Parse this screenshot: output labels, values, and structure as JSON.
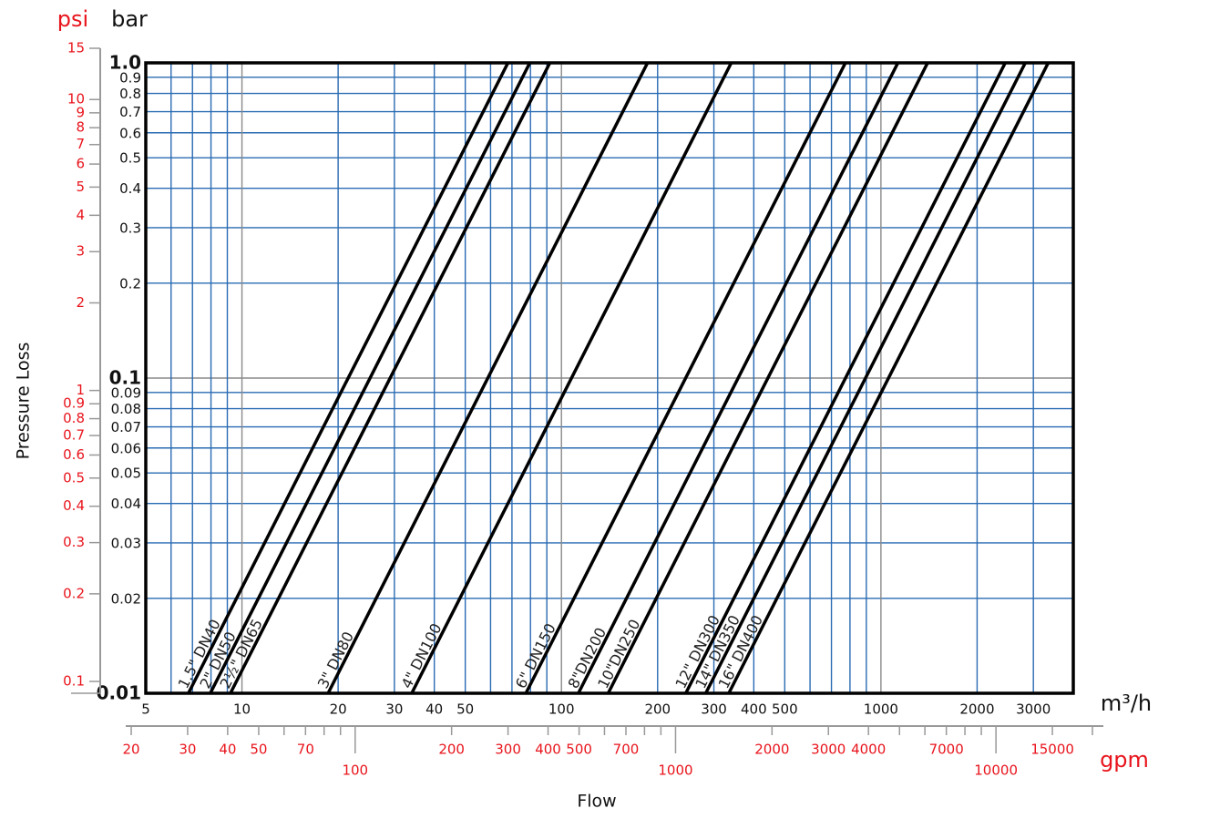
{
  "chart_data": {
    "type": "line",
    "x_label": "Flow",
    "y_label": "Pressure Loss",
    "x_unit": "m³/h",
    "x2_unit": "gpm",
    "y_unit": "bar",
    "y2_unit": "psi",
    "log_x": true,
    "log_y": true,
    "grid": true,
    "grid_color": "#2a6bb3",
    "major_grid_color": "#8a8a8a",
    "axis_color": "#e8141c",
    "xlim": [
      5,
      4000
    ],
    "xticks": [
      5,
      10,
      20,
      30,
      40,
      50,
      100,
      200,
      300,
      400,
      500,
      1000,
      2000,
      3000
    ],
    "xminor": [
      6,
      7,
      8,
      9,
      60,
      70,
      80,
      90,
      600,
      700,
      800,
      900
    ],
    "ylim": [
      0.01,
      1
    ],
    "yticks": [
      {
        "value": 1,
        "label": "1.0"
      },
      0.9,
      0.8,
      0.7,
      0.6,
      0.5,
      0.4,
      0.3,
      0.2,
      0.1,
      0.09,
      0.08,
      0.07,
      0.06,
      0.05,
      0.04,
      0.03,
      0.02,
      0.01
    ],
    "x2lim": [
      20,
      20000
    ],
    "x2ticks": [
      20,
      30,
      40,
      50,
      70,
      100,
      200,
      300,
      400,
      500,
      700,
      1000,
      2000,
      3000,
      4000,
      7000,
      10000,
      15000
    ],
    "x2minor": [
      60,
      80,
      90,
      600,
      800,
      900,
      5000,
      6000,
      8000,
      9000,
      20000
    ],
    "y2lim": [
      0.1,
      15
    ],
    "y2ticks": [
      15,
      10,
      9,
      8,
      7,
      6,
      5,
      4,
      3,
      2,
      1,
      0.9,
      0.8,
      0.7,
      0.6,
      0.5,
      0.4,
      0.3,
      0.2,
      0.1
    ],
    "series": [
      {
        "name": "1.5\" DN40",
        "color": "#000000",
        "x": [
          6.8,
          68
        ],
        "values": [
          0.01,
          1
        ]
      },
      {
        "name": "2\" DN50",
        "color": "#000000",
        "x": [
          7.96,
          79.6
        ],
        "values": [
          0.01,
          1
        ]
      },
      {
        "name": "2½\" DN65",
        "color": "#000000",
        "x": [
          9.2,
          92
        ],
        "values": [
          0.01,
          1
        ]
      },
      {
        "name": "3\" DN80",
        "color": "#000000",
        "x": [
          18.6,
          186
        ],
        "values": [
          0.01,
          1
        ]
      },
      {
        "name": "4\" DN100",
        "color": "#000000",
        "x": [
          34,
          340
        ],
        "values": [
          0.01,
          1
        ]
      },
      {
        "name": "6\" DN150",
        "color": "#000000",
        "x": [
          77.4,
          774
        ],
        "values": [
          0.01,
          1
        ]
      },
      {
        "name": "8\"DN200",
        "color": "#000000",
        "x": [
          113,
          1130
        ],
        "values": [
          0.01,
          1
        ]
      },
      {
        "name": "10\"DN250",
        "color": "#000000",
        "x": [
          140,
          1400
        ],
        "values": [
          0.01,
          1
        ]
      },
      {
        "name": "12\" DN300",
        "color": "#000000",
        "x": [
          245,
          2450
        ],
        "values": [
          0.01,
          1
        ]
      },
      {
        "name": "14\" DN350",
        "color": "#000000",
        "x": [
          283,
          2830
        ],
        "values": [
          0.01,
          1
        ]
      },
      {
        "name": "16\" DN400",
        "color": "#000000",
        "x": [
          334,
          3340
        ],
        "values": [
          0.01,
          1
        ]
      }
    ]
  }
}
